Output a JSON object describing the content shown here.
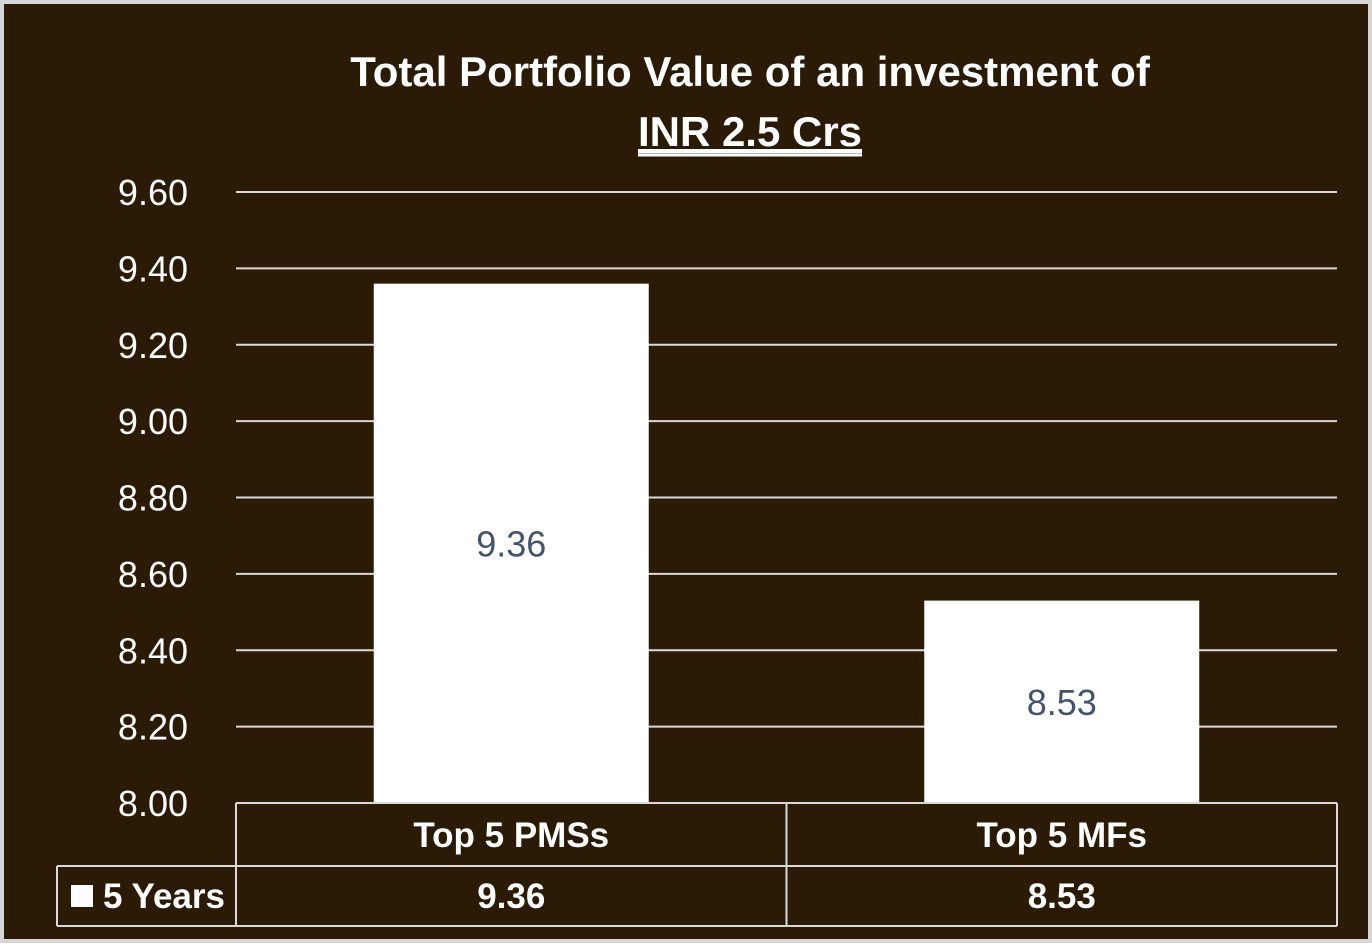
{
  "chart_data": {
    "type": "bar",
    "title_line1": "Total Portfolio Value of an investment of",
    "title_line2": "INR 2.5 Crs",
    "categories": [
      "Top 5 PMSs",
      "Top 5 MFs"
    ],
    "series": [
      {
        "name": "5 Years",
        "values": [
          9.36,
          8.53
        ],
        "value_labels": [
          "9.36",
          "8.53"
        ]
      }
    ],
    "ylim": [
      8.0,
      9.6
    ],
    "yticks": [
      "8.00",
      "8.20",
      "8.40",
      "8.60",
      "8.80",
      "9.00",
      "9.20",
      "9.40",
      "9.60"
    ],
    "grid": true,
    "data_table": true,
    "colors": {
      "background": "#2b1a05",
      "bar": "#ffffff",
      "grid": "#d9d9d9",
      "text": "#ffffff",
      "data_label": "#44546a"
    }
  }
}
